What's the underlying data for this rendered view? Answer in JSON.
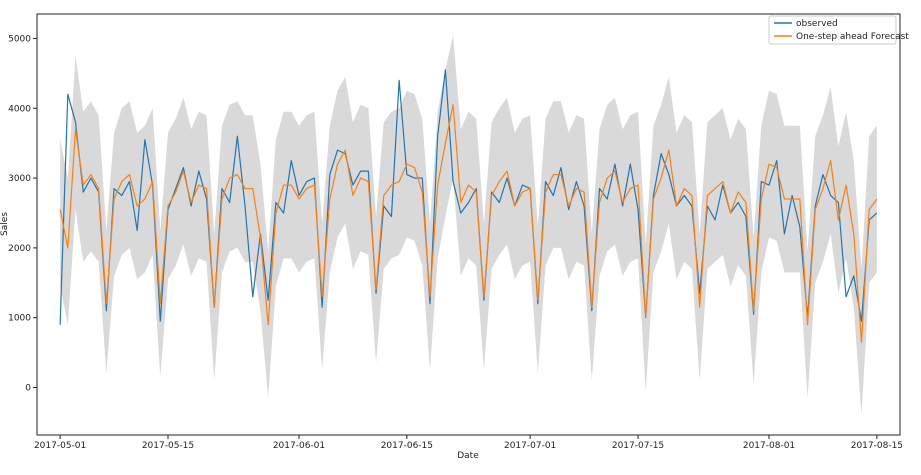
{
  "chart_data": {
    "type": "line",
    "title": "",
    "xlabel": "Date",
    "ylabel": "Sales",
    "x_start": "2017-05-01",
    "x_end": "2017-08-15",
    "xlim": [
      "2017-04-28",
      "2017-08-18"
    ],
    "ylim": [
      -680,
      5350
    ],
    "x_ticks": [
      "2017-05-01",
      "2017-05-15",
      "2017-06-01",
      "2017-06-15",
      "2017-07-01",
      "2017-07-15",
      "2017-08-01",
      "2017-08-15"
    ],
    "y_ticks": [
      0,
      1000,
      2000,
      3000,
      4000,
      5000
    ],
    "legend_position": "top-right",
    "grid": false,
    "series": [
      {
        "name": "observed",
        "color": "#1f77b4",
        "values": [
          900,
          4200,
          3800,
          2800,
          3000,
          2800,
          1100,
          2850,
          2750,
          2950,
          2250,
          3550,
          2900,
          950,
          2550,
          2850,
          3150,
          2600,
          3100,
          2700,
          1150,
          2850,
          2650,
          3600,
          2600,
          1300,
          2200,
          1250,
          2650,
          2500,
          3250,
          2750,
          2950,
          3000,
          1150,
          3050,
          3400,
          3350,
          2900,
          3100,
          3100,
          1350,
          2600,
          2450,
          4400,
          3050,
          3000,
          3000,
          1200,
          3600,
          4550,
          2950,
          2500,
          2650,
          2850,
          1250,
          2800,
          2650,
          3000,
          2600,
          2900,
          2850,
          1200,
          2950,
          2750,
          3150,
          2550,
          2950,
          2600,
          1100,
          2850,
          2700,
          3200,
          2600,
          3200,
          2550,
          1000,
          2750,
          3350,
          3050,
          2600,
          2750,
          2600,
          1350,
          2600,
          2400,
          2900,
          2500,
          2650,
          2450,
          1050,
          2950,
          2900,
          3250,
          2200,
          2750,
          2300,
          1000,
          2600,
          3050,
          2750,
          2650,
          1300,
          1600,
          950,
          2400,
          2500
        ]
      },
      {
        "name": "One-step ahead Forecast",
        "color": "#ff7f0e",
        "values": [
          2550,
          2000,
          3700,
          2900,
          3050,
          2850,
          1200,
          2700,
          2950,
          3050,
          2600,
          2700,
          2950,
          1200,
          2600,
          2800,
          3100,
          2650,
          2900,
          2850,
          1150,
          2700,
          3000,
          3050,
          2850,
          2850,
          2150,
          900,
          2500,
          2900,
          2900,
          2700,
          2850,
          2900,
          1300,
          2700,
          3200,
          3400,
          2750,
          3000,
          2950,
          1400,
          2750,
          2900,
          2950,
          3200,
          3150,
          2800,
          1300,
          2900,
          3500,
          4050,
          2650,
          2900,
          2800,
          1300,
          2750,
          2950,
          3100,
          2600,
          2800,
          2850,
          1250,
          2800,
          3050,
          3050,
          2600,
          2850,
          2800,
          1150,
          2650,
          3000,
          3100,
          2650,
          2850,
          2900,
          1000,
          2700,
          3000,
          3400,
          2600,
          2850,
          2750,
          1150,
          2750,
          2850,
          2950,
          2500,
          2800,
          2650,
          1100,
          2700,
          3200,
          3150,
          2700,
          2700,
          2700,
          900,
          2550,
          2850,
          3250,
          2400,
          2900,
          2200,
          650,
          2550,
          2700
        ]
      }
    ],
    "confidence_interval": {
      "color": "#d9d9d9",
      "lower": [
        1450,
        900,
        2550,
        1800,
        1950,
        1800,
        200,
        1600,
        1900,
        2000,
        1550,
        1650,
        1900,
        150,
        1550,
        1750,
        2050,
        1600,
        1850,
        1800,
        100,
        1650,
        1950,
        2000,
        1800,
        1800,
        1100,
        -150,
        1450,
        1850,
        1850,
        1650,
        1800,
        1850,
        250,
        1650,
        2150,
        2350,
        1700,
        1950,
        1900,
        350,
        1700,
        1850,
        1900,
        2150,
        2100,
        1750,
        250,
        1850,
        2450,
        3000,
        1600,
        1850,
        1750,
        250,
        1700,
        1900,
        2050,
        1550,
        1750,
        1800,
        200,
        1750,
        2000,
        2000,
        1550,
        1800,
        1750,
        100,
        1600,
        1950,
        2050,
        1600,
        1800,
        1850,
        -50,
        1650,
        1950,
        2350,
        1550,
        1800,
        1700,
        100,
        1700,
        1800,
        1900,
        1450,
        1750,
        1600,
        50,
        1650,
        2150,
        2100,
        1650,
        1650,
        1650,
        -150,
        1500,
        1800,
        2200,
        1350,
        1850,
        1150,
        -400,
        1500,
        1650
      ],
      "upper": [
        3550,
        3000,
        4750,
        3950,
        4100,
        3900,
        2250,
        3650,
        4000,
        4100,
        3650,
        3750,
        4000,
        2250,
        3650,
        3850,
        4150,
        3700,
        3950,
        3900,
        2200,
        3750,
        4050,
        4100,
        3900,
        3900,
        3200,
        1950,
        3550,
        3950,
        3950,
        3750,
        3900,
        3950,
        2350,
        3750,
        4250,
        4450,
        3800,
        4050,
        4000,
        2450,
        3800,
        3950,
        4000,
        4250,
        4200,
        3850,
        2350,
        3950,
        4550,
        5050,
        3700,
        3950,
        3850,
        2350,
        3800,
        4000,
        4150,
        3650,
        3850,
        3900,
        2300,
        3850,
        4100,
        4100,
        3650,
        3900,
        3850,
        2200,
        3700,
        4050,
        4150,
        3700,
        3900,
        3950,
        2050,
        3750,
        4050,
        4450,
        3650,
        3900,
        3800,
        2200,
        3800,
        3900,
        4000,
        3550,
        3850,
        3700,
        2150,
        3750,
        4250,
        4200,
        3750,
        3750,
        3750,
        1950,
        3600,
        3900,
        4300,
        3450,
        3950,
        3250,
        1700,
        3600,
        3750
      ]
    }
  }
}
